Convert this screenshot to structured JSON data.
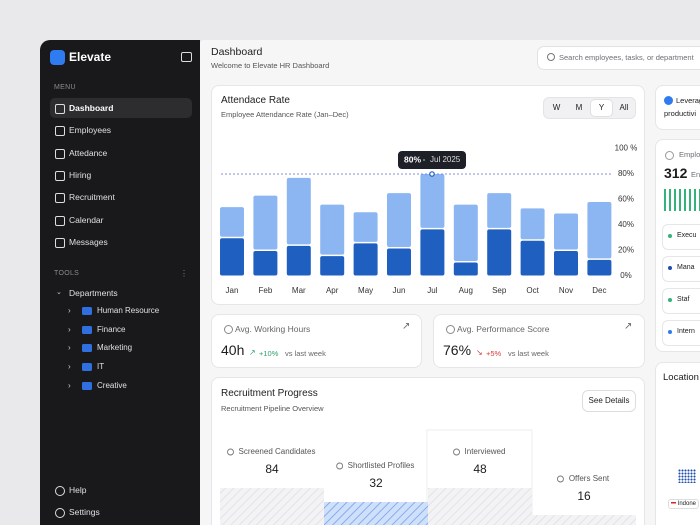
{
  "sidebar": {
    "brand": "Elevate",
    "menu_heading": "MENU",
    "menu": [
      "Dashboard",
      "Employees",
      "Attedance",
      "Hiring",
      "Recruitment",
      "Calendar",
      "Messages"
    ],
    "tools_heading": "TOOLS",
    "tree": {
      "label": "Departments",
      "children": [
        "Human Resource",
        "Finance",
        "Marketing",
        "IT",
        "Creative"
      ]
    },
    "footer": [
      "Help",
      "Settings"
    ]
  },
  "header": {
    "title": "Dashboard",
    "subtitle": "Welcome to Elevate HR Dashboard",
    "search_placeholder": "Search employees, tasks, or department"
  },
  "chart_data": {
    "type": "stacked_bar",
    "title": "Attendace Rate",
    "subtitle": "Employee Attendance Rate (Jan–Dec)",
    "ranges": [
      "W",
      "M",
      "Y",
      "All"
    ],
    "active_range": "Y",
    "categories": [
      "Jan",
      "Feb",
      "Mar",
      "Apr",
      "May",
      "Jun",
      "Jul",
      "Aug",
      "Sep",
      "Oct",
      "Nov",
      "Dec"
    ],
    "series": [
      {
        "color": "#1f5fc0",
        "values": [
          30,
          20,
          24,
          16,
          26,
          22,
          37,
          11,
          37,
          28,
          20,
          13
        ]
      },
      {
        "color": "#8cb6f1",
        "values": [
          24,
          43,
          53,
          40,
          24,
          43,
          43,
          45,
          28,
          25,
          29,
          45
        ]
      }
    ],
    "ylim": [
      0,
      100
    ],
    "yticks": [
      {
        "value": 0,
        "label": "0%"
      },
      {
        "value": 20,
        "label": "20%"
      },
      {
        "value": 40,
        "label": "40%"
      },
      {
        "value": 60,
        "label": "60%"
      },
      {
        "value": 80,
        "label": "80%"
      },
      {
        "value": 100,
        "label": "100 %"
      }
    ],
    "tooltip": {
      "value": 80,
      "label": "80%",
      "date": "Jul 2025"
    }
  },
  "stats": [
    {
      "title": "Avg. Working Hours",
      "value": "40h",
      "change": "+10%",
      "comparison": "vs last week"
    },
    {
      "title": "Avg. Performance Score",
      "value": "76%",
      "change": "+5%",
      "comparison": "vs last week"
    }
  ],
  "recruitment": {
    "title": "Recruitment Progress",
    "subtitle": "Recruitment Pipeline Overview",
    "button": "See Details",
    "stages": [
      {
        "label": "Screened Candidates",
        "value": 84
      },
      {
        "label": "Shortlisted Profiles",
        "value": 32
      },
      {
        "label": "Interviewed",
        "value": 48
      },
      {
        "label": "Offers Sent",
        "value": 16
      }
    ]
  },
  "right_panel": {
    "banner": [
      "Leverag",
      "productivi"
    ],
    "employees": {
      "title": "Emplo",
      "value": "312",
      "unit": "En",
      "groups": [
        "Execu",
        "Mana",
        "Staf",
        "Intern"
      ]
    },
    "location": {
      "title": "Location",
      "marker": "Indone"
    }
  }
}
